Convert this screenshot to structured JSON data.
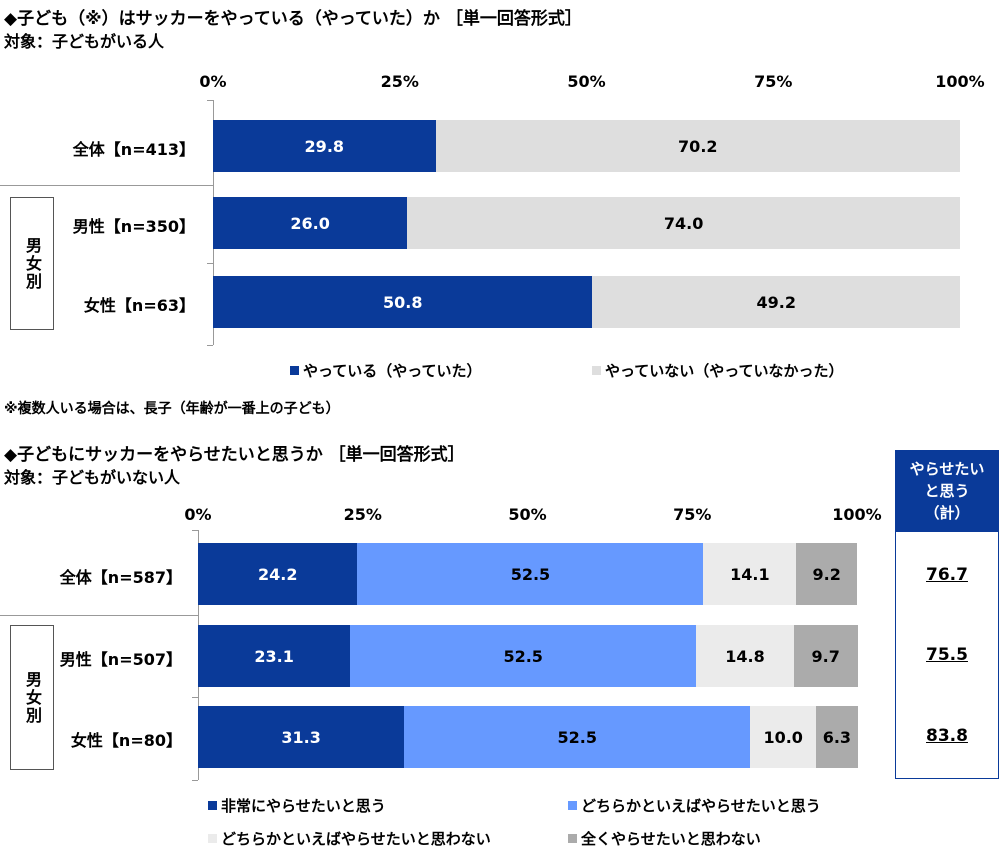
{
  "colors": {
    "dark_blue": "#0a3a99",
    "light_blue": "#6699ff",
    "light_gray": "#e3e3e3",
    "dark_gray": "#ababab"
  },
  "chart_data": [
    {
      "type": "bar",
      "stacked": true,
      "orientation": "horizontal",
      "title": "◆子ども（※）はサッカーをやっている（やっていた）か ［単一回答形式］",
      "subtitle": "対象：子どもがいる人",
      "note": "※複数人いる場合は、長子（年齢が一番上の子ども）",
      "group_label": "男女別",
      "ticks": [
        "0%",
        "25%",
        "50%",
        "75%",
        "100%"
      ],
      "xlim": [
        0,
        100
      ],
      "categories": [
        "全体【n=413】",
        "男性【n=350】",
        "女性【n=63】"
      ],
      "series": [
        {
          "name": "やっている（やっていた）",
          "values": [
            29.8,
            26.0,
            50.8
          ],
          "labels": [
            "29.8",
            "26.0",
            "50.8"
          ],
          "color": "#0a3a99",
          "text": "#fff"
        },
        {
          "name": "やっていない（やっていなかった）",
          "values": [
            70.2,
            74.0,
            49.2
          ],
          "labels": [
            "70.2",
            "74.0",
            "49.2"
          ],
          "color": "#dedede",
          "text": "#000"
        }
      ],
      "legend": "bottom"
    },
    {
      "type": "bar",
      "stacked": true,
      "orientation": "horizontal",
      "title": "◆子どもにサッカーをやらせたいと思うか ［単一回答形式］",
      "subtitle": "対象：子どもがいない人",
      "group_label": "男女別",
      "ticks": [
        "0%",
        "25%",
        "50%",
        "75%",
        "100%"
      ],
      "xlim": [
        0,
        100
      ],
      "categories": [
        "全体【n=587】",
        "男性【n=507】",
        "女性【n=80】"
      ],
      "series": [
        {
          "name": "非常にやらせたいと思う",
          "values": [
            24.2,
            23.1,
            31.3
          ],
          "labels": [
            "24.2",
            "23.1",
            "31.3"
          ],
          "color": "#0a3a99",
          "text": "#fff"
        },
        {
          "name": "どちらかといえばやらせたいと思う",
          "values": [
            52.5,
            52.5,
            52.5
          ],
          "labels": [
            "52.5",
            "52.5",
            "52.5"
          ],
          "color": "#6699ff",
          "text": "#000"
        },
        {
          "name": "どちらかといえばやらせたいと思わない",
          "values": [
            14.1,
            14.8,
            10.0
          ],
          "labels": [
            "14.1",
            "14.8",
            "10.0"
          ],
          "color": "#ebebeb",
          "text": "#000"
        },
        {
          "name": "全くやらせたいと思わない",
          "values": [
            9.2,
            9.7,
            6.3
          ],
          "labels": [
            "9.2",
            "9.7",
            "6.3"
          ],
          "color": "#ababab",
          "text": "#000"
        }
      ],
      "summary": {
        "header": [
          "やらせたい",
          "と思う",
          "（計）"
        ],
        "values": [
          "76.7",
          "75.5",
          "83.8"
        ]
      },
      "legend": "bottom"
    }
  ]
}
